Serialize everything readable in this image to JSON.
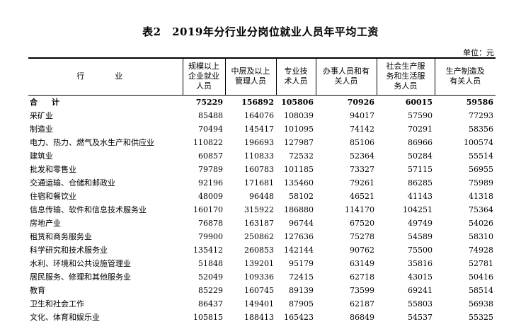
{
  "title": "表2　2019年分行业分岗位就业人员年平均工资",
  "unit": "单位：元",
  "headers": {
    "industry": "行　业",
    "col1": [
      "规模以上",
      "企业就业",
      "人员"
    ],
    "col2": [
      "中层及以上",
      "管理人员"
    ],
    "col3": [
      "专业技",
      "术人员"
    ],
    "col4": [
      "办事人员和有",
      "关人员"
    ],
    "col5": [
      "社会生产服",
      "务和生活服",
      "务人员"
    ],
    "col6": [
      "生产制造及",
      "有关人员"
    ]
  },
  "total": {
    "name": "合 计",
    "values": [
      "75229",
      "156892",
      "105806",
      "70926",
      "60015",
      "59586"
    ]
  },
  "rows": [
    {
      "name": "采矿业",
      "values": [
        "85488",
        "164076",
        "108039",
        "94017",
        "57590",
        "77293"
      ]
    },
    {
      "name": "制造业",
      "values": [
        "70494",
        "145417",
        "101095",
        "74142",
        "70291",
        "58356"
      ]
    },
    {
      "name": "电力、热力、燃气及水生产和供应业",
      "values": [
        "110822",
        "196693",
        "127987",
        "85106",
        "86966",
        "100574"
      ]
    },
    {
      "name": "建筑业",
      "values": [
        "60857",
        "110833",
        "72532",
        "52364",
        "50284",
        "55514"
      ]
    },
    {
      "name": "批发和零售业",
      "values": [
        "79789",
        "160783",
        "101185",
        "73327",
        "57115",
        "56955"
      ]
    },
    {
      "name": "交通运输、仓储和邮政业",
      "values": [
        "92196",
        "171681",
        "135460",
        "79261",
        "86285",
        "75989"
      ]
    },
    {
      "name": "住宿和餐饮业",
      "values": [
        "48009",
        "96448",
        "58102",
        "46521",
        "41143",
        "41318"
      ]
    },
    {
      "name": "信息传输、软件和信息技术服务业",
      "values": [
        "160170",
        "315922",
        "186880",
        "114170",
        "104251",
        "75364"
      ]
    },
    {
      "name": "房地产业",
      "values": [
        "76878",
        "163187",
        "96744",
        "67520",
        "49749",
        "54026"
      ]
    },
    {
      "name": "租赁和商务服务业",
      "values": [
        "79900",
        "250862",
        "127636",
        "75278",
        "54589",
        "58310"
      ]
    },
    {
      "name": "科学研究和技术服务业",
      "values": [
        "135412",
        "260853",
        "142144",
        "90762",
        "75500",
        "74928"
      ]
    },
    {
      "name": "水利、环境和公共设施管理业",
      "values": [
        "51848",
        "139201",
        "95179",
        "63149",
        "35816",
        "52781"
      ]
    },
    {
      "name": "居民服务、修理和其他服务业",
      "values": [
        "52049",
        "109336",
        "72415",
        "62718",
        "43015",
        "50416"
      ]
    },
    {
      "name": "教育",
      "values": [
        "85229",
        "160745",
        "89139",
        "73599",
        "69241",
        "58514"
      ]
    },
    {
      "name": "卫生和社会工作",
      "values": [
        "86437",
        "149401",
        "87905",
        "62187",
        "55803",
        "56938"
      ]
    },
    {
      "name": "文化、体育和娱乐业",
      "values": [
        "105815",
        "188413",
        "165423",
        "86849",
        "54537",
        "55325"
      ]
    }
  ]
}
